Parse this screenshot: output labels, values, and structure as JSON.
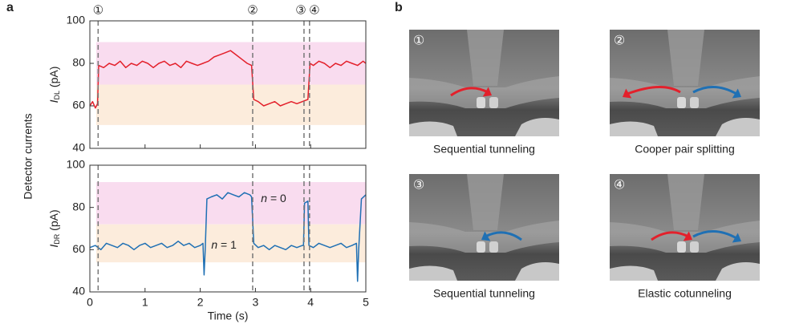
{
  "panel_labels": [
    "a",
    "b"
  ],
  "shared_ylabel": "Detector currents",
  "chart_data": [
    {
      "type": "line",
      "ylabel": {
        "symbol": "I",
        "subscript": "DL",
        "unit": " (pA)"
      },
      "xlim": [
        0,
        5
      ],
      "xticks": [
        0,
        1,
        2,
        3,
        4,
        5
      ],
      "show_xtick_labels": false,
      "ylim": [
        40,
        100
      ],
      "yticks": [
        40,
        60,
        80,
        100
      ],
      "bands": [
        {
          "from": 70,
          "to": 90,
          "color": "#f9dcef"
        },
        {
          "from": 51,
          "to": 70,
          "color": "#fcecdc"
        }
      ],
      "events": [
        {
          "x": 0.15,
          "label": "①"
        },
        {
          "x": 2.95,
          "label": "②"
        },
        {
          "x": 3.88,
          "label": "③"
        },
        {
          "x": 3.98,
          "label": "④"
        }
      ],
      "x": [
        0,
        0.05,
        0.1,
        0.14,
        0.16,
        0.25,
        0.35,
        0.45,
        0.55,
        0.65,
        0.75,
        0.85,
        0.95,
        1.05,
        1.15,
        1.25,
        1.35,
        1.45,
        1.55,
        1.65,
        1.75,
        1.85,
        1.95,
        2.05,
        2.15,
        2.25,
        2.35,
        2.45,
        2.55,
        2.65,
        2.75,
        2.85,
        2.93,
        2.97,
        3.05,
        3.15,
        3.25,
        3.35,
        3.45,
        3.55,
        3.65,
        3.75,
        3.85,
        3.95,
        3.99,
        4.05,
        4.15,
        4.25,
        4.35,
        4.45,
        4.55,
        4.65,
        4.75,
        4.85,
        4.95,
        5
      ],
      "series": [
        {
          "name": "DL",
          "color": "#e3202b",
          "values": [
            60,
            62,
            59,
            61,
            79,
            78,
            80,
            79,
            81,
            78,
            80,
            79,
            81,
            80,
            78,
            80,
            81,
            79,
            80,
            78,
            81,
            80,
            79,
            80,
            81,
            83,
            84,
            85,
            86,
            84,
            82,
            80,
            79,
            63,
            62,
            60,
            61,
            62,
            60,
            61,
            62,
            61,
            62,
            63,
            80,
            79,
            81,
            80,
            78,
            80,
            79,
            81,
            80,
            79,
            81,
            80
          ]
        }
      ]
    },
    {
      "type": "line",
      "ylabel": {
        "symbol": "I",
        "subscript": "DR",
        "unit": " (pA)"
      },
      "xlabel": "Time (s)",
      "xlim": [
        0,
        5
      ],
      "xticks": [
        0,
        1,
        2,
        3,
        4,
        5
      ],
      "show_xtick_labels": true,
      "ylim": [
        40,
        100
      ],
      "yticks": [
        40,
        60,
        80,
        100
      ],
      "bands": [
        {
          "from": 72,
          "to": 92,
          "color": "#f9dcef"
        },
        {
          "from": 54,
          "to": 72,
          "color": "#fcecdc"
        }
      ],
      "annotations": [
        {
          "var": "n",
          "text": " = 0",
          "x": 3.1,
          "y": 84
        },
        {
          "var": "n",
          "text": " = 1",
          "x": 2.2,
          "y": 62
        }
      ],
      "x": [
        0,
        0.1,
        0.2,
        0.3,
        0.4,
        0.5,
        0.6,
        0.7,
        0.8,
        0.9,
        1.0,
        1.1,
        1.2,
        1.3,
        1.4,
        1.5,
        1.6,
        1.7,
        1.8,
        1.9,
        2.0,
        2.05,
        2.07,
        2.09,
        2.12,
        2.2,
        2.3,
        2.4,
        2.5,
        2.6,
        2.7,
        2.8,
        2.9,
        2.93,
        2.97,
        3.05,
        3.15,
        3.25,
        3.35,
        3.45,
        3.55,
        3.65,
        3.75,
        3.85,
        3.87,
        3.89,
        3.95,
        3.97,
        4.05,
        4.15,
        4.25,
        4.35,
        4.45,
        4.55,
        4.65,
        4.75,
        4.83,
        4.85,
        4.87,
        4.92,
        5
      ],
      "series": [
        {
          "name": "DR",
          "color": "#1f70b4",
          "values": [
            61,
            62,
            60,
            63,
            62,
            61,
            63,
            62,
            60,
            62,
            63,
            61,
            62,
            63,
            61,
            62,
            64,
            62,
            63,
            61,
            62,
            63,
            48,
            60,
            84,
            85,
            86,
            84,
            87,
            86,
            85,
            87,
            86,
            85,
            63,
            61,
            62,
            60,
            62,
            61,
            60,
            62,
            61,
            62,
            62,
            82,
            83,
            62,
            61,
            63,
            62,
            61,
            62,
            63,
            61,
            62,
            63,
            45,
            60,
            84,
            86
          ]
        }
      ]
    }
  ],
  "panel_b": [
    {
      "number": "①",
      "caption": "Sequential tunneling"
    },
    {
      "number": "②",
      "caption": "Cooper pair splitting"
    },
    {
      "number": "③",
      "caption": "Sequential tunneling"
    },
    {
      "number": "④",
      "caption": "Elastic cotunneling"
    }
  ]
}
